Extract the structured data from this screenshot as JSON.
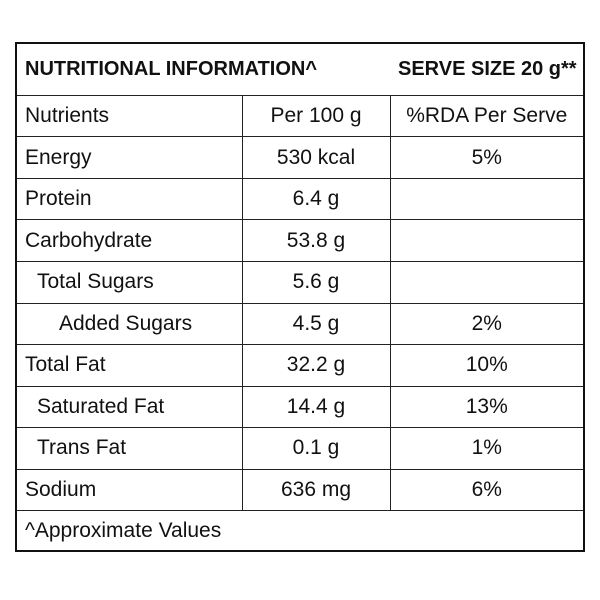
{
  "header": {
    "title": "NUTRITIONAL INFORMATION^",
    "serve_size": "SERVE SIZE 20 g**"
  },
  "table": {
    "columns": [
      "Nutrients",
      "Per 100 g",
      "%RDA Per Serve"
    ],
    "rows": [
      [
        "Energy",
        "530 kcal",
        "5%"
      ],
      [
        "Protein",
        "6.4 g"
      ],
      [
        "Carbohydrate",
        "53.8 g"
      ],
      [
        "Total Sugars",
        "5.6 g"
      ],
      [
        "Added Sugars",
        "4.5 g",
        "2%"
      ],
      [
        "Total Fat",
        "32.2 g",
        "10%"
      ],
      [
        "Saturated Fat",
        "14.4 g",
        "13%"
      ],
      [
        "Trans Fat",
        "0.1 g",
        "1%"
      ],
      [
        "Sodium",
        "636 mg",
        "6%"
      ]
    ]
  },
  "footnote": "^Approximate Values"
}
